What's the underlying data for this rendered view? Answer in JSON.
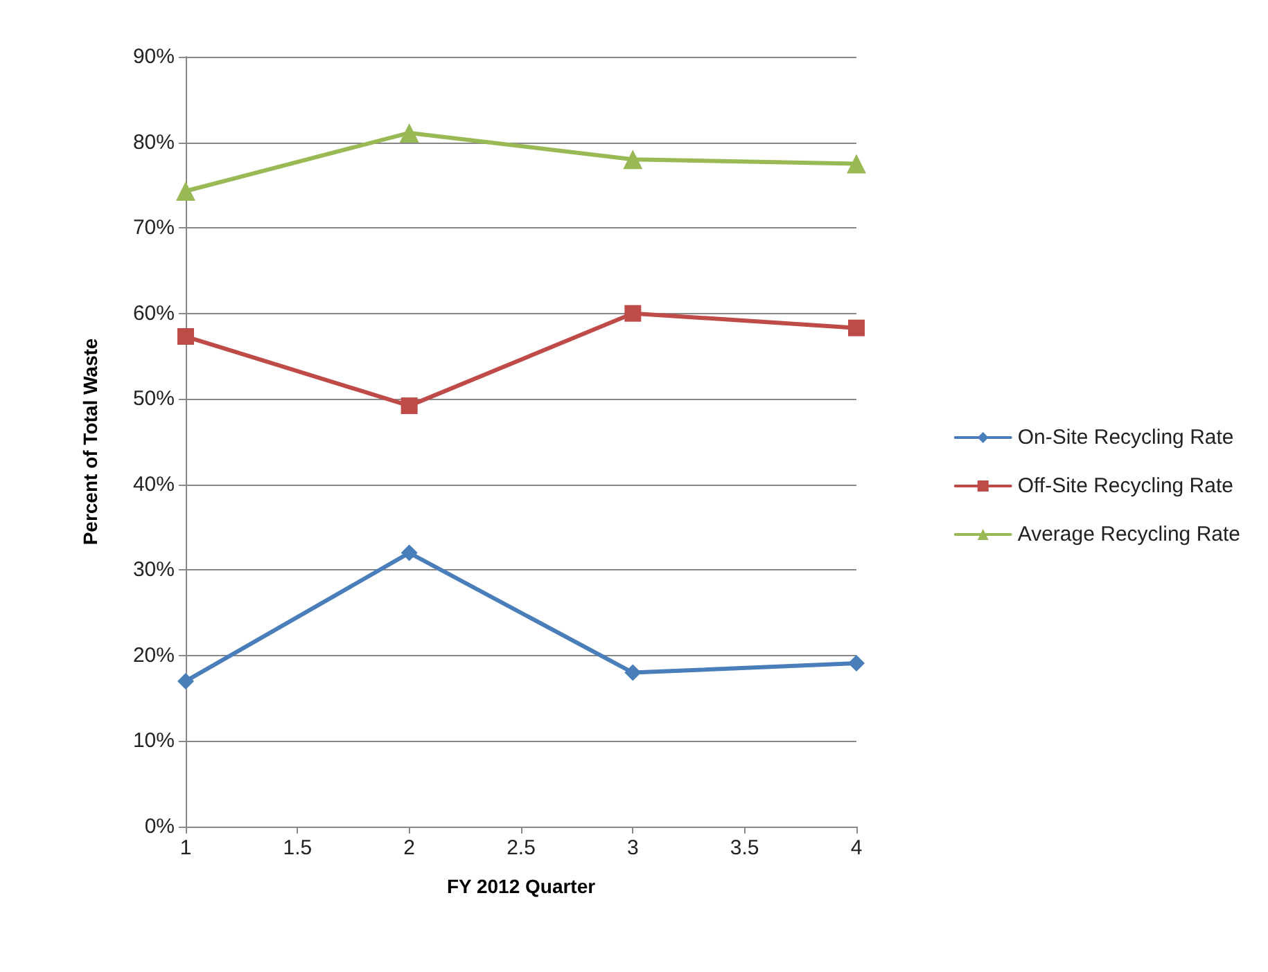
{
  "chart_data": {
    "type": "line",
    "xlabel": "FY 2012 Quarter",
    "ylabel": "Percent of Total Waste",
    "x": [
      1,
      2,
      3,
      4
    ],
    "series": [
      {
        "name": "On-Site Recycling Rate",
        "color": "#4a7ebb",
        "marker": "diamond",
        "values": [
          17.0,
          32.0,
          18.0,
          19.1
        ]
      },
      {
        "name": "Off-Site Recycling Rate",
        "color": "#be4b48",
        "marker": "square",
        "values": [
          57.3,
          49.2,
          60.0,
          58.3
        ]
      },
      {
        "name": "Average Recycling Rate",
        "color": "#98b954",
        "marker": "triangle",
        "values": [
          74.3,
          81.1,
          78.0,
          77.5
        ]
      }
    ],
    "xlim": [
      1,
      4
    ],
    "xticks": [
      1,
      1.5,
      2,
      2.5,
      3,
      3.5,
      4
    ],
    "ylim": [
      0,
      90
    ],
    "yticks": [
      {
        "value": 0,
        "label": "0%"
      },
      {
        "value": 10,
        "label": "10%"
      },
      {
        "value": 20,
        "label": "20%"
      },
      {
        "value": 30,
        "label": "30%"
      },
      {
        "value": 40,
        "label": "40%"
      },
      {
        "value": 50,
        "label": "50%"
      },
      {
        "value": 60,
        "label": "60%"
      },
      {
        "value": 70,
        "label": "70%"
      },
      {
        "value": 80,
        "label": "80%"
      },
      {
        "value": 90,
        "label": "90%"
      }
    ],
    "grid": "y",
    "legend": "right",
    "line_style": "solid"
  }
}
